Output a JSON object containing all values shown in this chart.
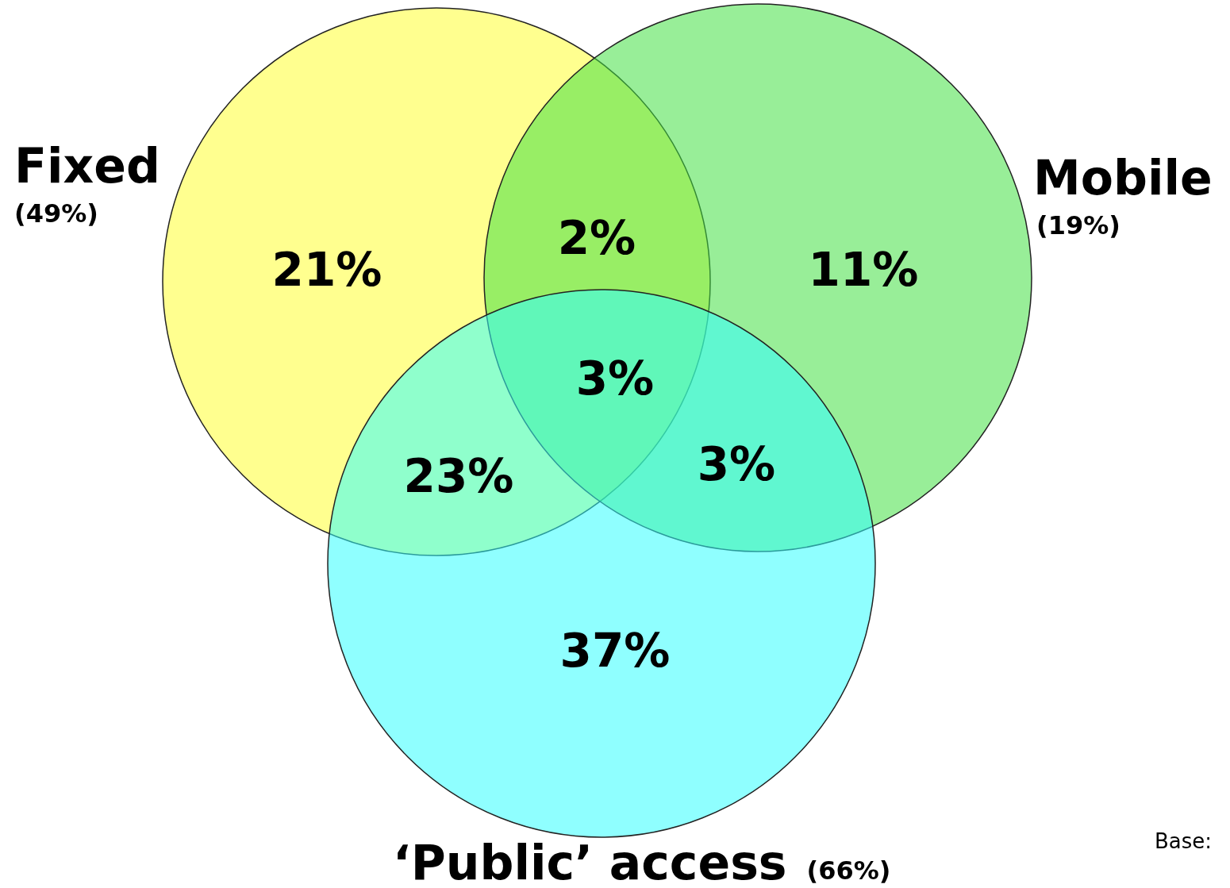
{
  "chart_data": {
    "type": "other",
    "categories": [
      "Fixed",
      "Mobile",
      "‘Public’ access"
    ],
    "values": [
      49,
      19,
      66
    ],
    "value_labels": [
      "(49%)",
      "(19%)",
      "(66%)"
    ],
    "colors": [
      "#ffff33",
      "#44e044",
      "#33ffff"
    ],
    "annotations": [
      "21%",
      "11%",
      "37%",
      "2%",
      "23%",
      "3%",
      "3%",
      "Base:"
    ]
  }
}
